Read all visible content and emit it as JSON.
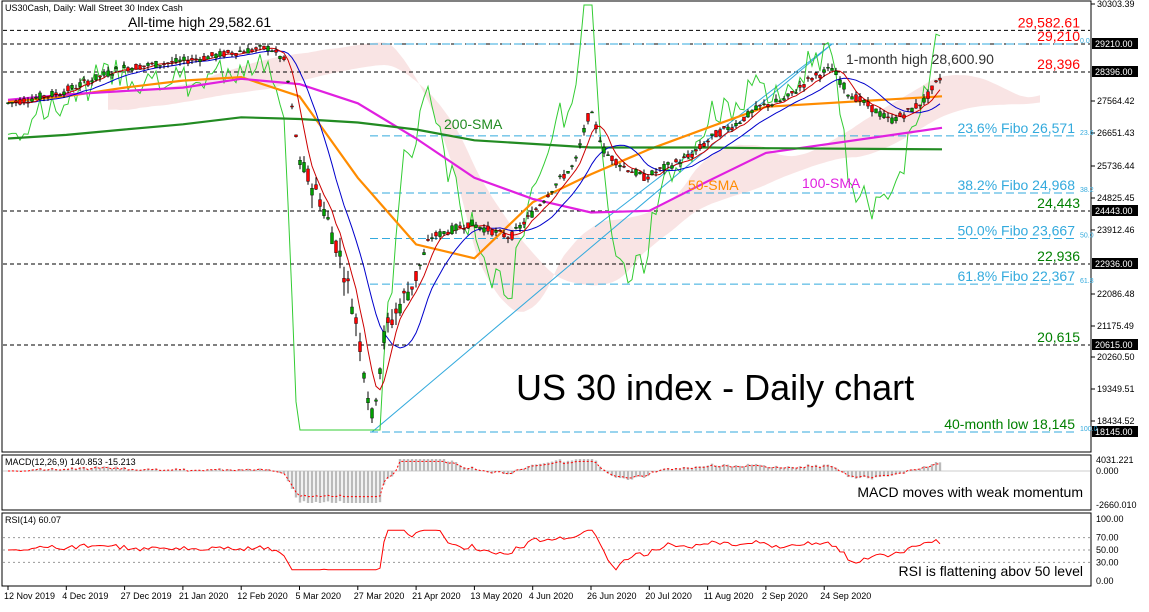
{
  "header": {
    "title": "US30Cash, Daily:  Wall Street 30 Index Cash",
    "macd_label": "MACD(12,26,9) 140.853 -15.213",
    "rsi_label": "RSI(14) 60.07"
  },
  "chart_data": [
    {
      "type": "line",
      "panel": "price",
      "title": "US 30 index - Daily chart",
      "x": [
        "12 Nov 2019",
        "4 Dec 2019",
        "27 Dec 2019",
        "21 Jan 2020",
        "12 Feb 2020",
        "5 Mar 2020",
        "27 Mar 2020",
        "21 Apr 2020",
        "13 May 2020",
        "4 Jun 2020",
        "26 Jun 2020",
        "20 Jul 2020",
        "11 Aug 2020",
        "2 Sep 2020",
        "24 Sep 2020"
      ],
      "yticks": [
        30303.39,
        29210.0,
        28396.0,
        27564.42,
        26651.43,
        25736.44,
        24825.45,
        24443.0,
        23912.46,
        22936.0,
        22086.48,
        21175.49,
        20615.0,
        20260.5,
        19349.51,
        18434.52,
        18145.0
      ],
      "ylim": [
        18000,
        30303.39
      ],
      "series": [
        {
          "name": "50-SMA",
          "color": "#ff8c00",
          "values": [
            27550,
            27700,
            27950,
            28150,
            28250,
            27700,
            25400,
            23500,
            23100,
            24700,
            25500,
            26200,
            26800,
            27400,
            27700
          ]
        },
        {
          "name": "100-SMA",
          "color": "#e020e0",
          "values": [
            27600,
            27750,
            27850,
            27950,
            28200,
            28050,
            27500,
            26500,
            25400,
            24800,
            24400,
            24450,
            25300,
            26100,
            26800
          ]
        },
        {
          "name": "200-SMA",
          "color": "#228b22",
          "values": [
            26500,
            26600,
            26750,
            26900,
            27100,
            27050,
            26950,
            26750,
            26450,
            26350,
            26250,
            26250,
            26250,
            26230,
            26200
          ]
        }
      ],
      "levels": [
        {
          "label": "29,582.61",
          "color": "#ff0000",
          "value": 29582.61
        },
        {
          "label": "29,210",
          "color": "#ff0000",
          "value": 29210.0
        },
        {
          "label": "28,396",
          "color": "#ff0000",
          "value": 28396.0
        },
        {
          "label": "24,443",
          "color": "#008000",
          "value": 24443.0
        },
        {
          "label": "22,936",
          "color": "#008000",
          "value": 22936.0
        },
        {
          "label": "20,615",
          "color": "#008000",
          "value": 20615.0
        }
      ],
      "fibo": [
        {
          "label": "23.6% Fibo 26,571",
          "ratio": "23.6",
          "value": 26571
        },
        {
          "label": "38.2% Fibo 24,968",
          "ratio": "38.2",
          "value": 24968
        },
        {
          "label": "50.0% Fibo 23,667",
          "ratio": "50.0",
          "value": 23667
        },
        {
          "label": "61.8% Fibo 22,367",
          "ratio": "61.8",
          "value": 22367
        },
        {
          "label": "",
          "ratio": "0.0",
          "value": 29210
        },
        {
          "label": "40-month low 18,145",
          "ratio": "100.0",
          "value": 18145
        }
      ],
      "annotations": [
        {
          "text": "All-time high 29,582.61",
          "color": "#000000"
        },
        {
          "text": "1-month high 28,600.90",
          "color": "#333333"
        },
        {
          "text": "200-SMA",
          "color": "#228b22"
        },
        {
          "text": "50-SMA",
          "color": "#ff8c00"
        },
        {
          "text": "100-SMA",
          "color": "#e020e0"
        }
      ],
      "current_price": 28396.0,
      "colors": {
        "bull": "#00a000",
        "bear": "#ff0000",
        "fibo": "#33aadd",
        "trendline": "#33aadd"
      }
    },
    {
      "type": "bar",
      "panel": "macd",
      "yticks": [
        4031.221,
        0.0,
        -2660.01
      ],
      "ylim": [
        -3200,
        4031.221
      ],
      "note": "MACD moves with weak momentum"
    },
    {
      "type": "line",
      "panel": "rsi",
      "yticks": [
        100.0,
        70.0,
        50.0,
        30.0,
        0.0
      ],
      "ylim": [
        0,
        100
      ],
      "note": "RSI is flattening abov 50 level"
    }
  ]
}
